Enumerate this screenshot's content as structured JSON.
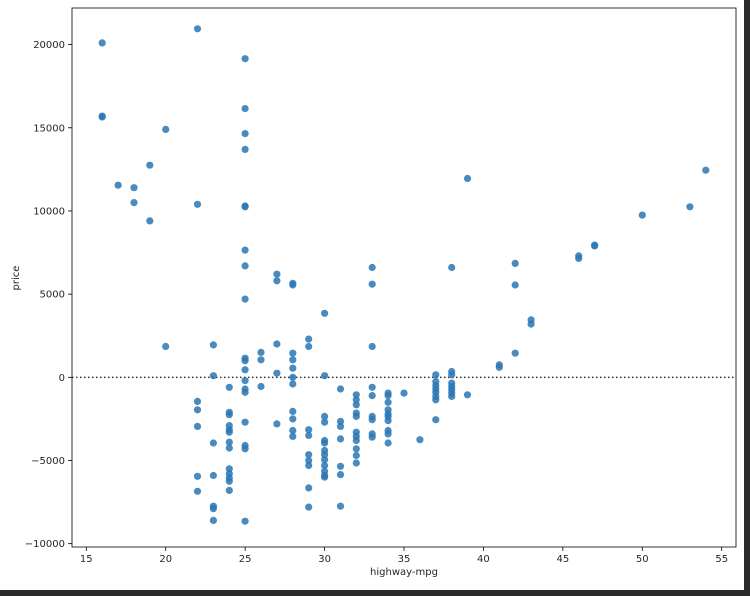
{
  "chart_data": {
    "type": "scatter",
    "title": "",
    "xlabel": "highway-mpg",
    "ylabel": "price",
    "xlim": [
      14.1,
      55.9
    ],
    "ylim": [
      -10200,
      22200
    ],
    "xticks": [
      15,
      20,
      25,
      30,
      35,
      40,
      45,
      50,
      55
    ],
    "yticks": [
      -10000,
      -5000,
      0,
      5000,
      10000,
      15000,
      20000
    ],
    "xtick_labels": [
      "15",
      "20",
      "25",
      "30",
      "35",
      "40",
      "45",
      "50",
      "55"
    ],
    "ytick_labels": [
      "−10000",
      "−5000",
      "0",
      "5000",
      "10000",
      "15000",
      "20000"
    ],
    "reference_line": {
      "y": 0,
      "style": "dotted"
    },
    "grid": false,
    "colors": {
      "marker": "#2a77b4",
      "reference_line": "#333333"
    },
    "points": [
      [
        16,
        20100
      ],
      [
        16,
        15650
      ],
      [
        16,
        15700
      ],
      [
        17,
        11550
      ],
      [
        18,
        11400
      ],
      [
        18,
        10500
      ],
      [
        19,
        12750
      ],
      [
        19,
        9400
      ],
      [
        20,
        14900
      ],
      [
        20,
        1850
      ],
      [
        22,
        20950
      ],
      [
        22,
        10400
      ],
      [
        22,
        -1450
      ],
      [
        22,
        -1950
      ],
      [
        22,
        -2950
      ],
      [
        22,
        -5950
      ],
      [
        22,
        -6850
      ],
      [
        23,
        1950
      ],
      [
        23,
        100
      ],
      [
        23,
        -3950
      ],
      [
        23,
        -5900
      ],
      [
        23,
        -7750
      ],
      [
        23,
        -7900
      ],
      [
        23,
        -8600
      ],
      [
        24,
        -600
      ],
      [
        24,
        -2100
      ],
      [
        24,
        -2250
      ],
      [
        24,
        -2900
      ],
      [
        24,
        -3150
      ],
      [
        24,
        -3300
      ],
      [
        24,
        -3900
      ],
      [
        24,
        -4250
      ],
      [
        24,
        -5500
      ],
      [
        24,
        -5800
      ],
      [
        24,
        -6050
      ],
      [
        24,
        -6250
      ],
      [
        24,
        -6800
      ],
      [
        25,
        19150
      ],
      [
        25,
        16150
      ],
      [
        25,
        14650
      ],
      [
        25,
        13700
      ],
      [
        25,
        10300
      ],
      [
        25,
        10250
      ],
      [
        25,
        7650
      ],
      [
        25,
        6700
      ],
      [
        25,
        4700
      ],
      [
        25,
        1150
      ],
      [
        25,
        1000
      ],
      [
        25,
        450
      ],
      [
        25,
        -200
      ],
      [
        25,
        -700
      ],
      [
        25,
        -900
      ],
      [
        25,
        -2700
      ],
      [
        25,
        -4100
      ],
      [
        25,
        -4300
      ],
      [
        25,
        -8650
      ],
      [
        26,
        1500
      ],
      [
        26,
        1050
      ],
      [
        26,
        -550
      ],
      [
        27,
        6200
      ],
      [
        27,
        5800
      ],
      [
        27,
        2000
      ],
      [
        27,
        250
      ],
      [
        27,
        -2800
      ],
      [
        28,
        5650
      ],
      [
        28,
        5550
      ],
      [
        28,
        1450
      ],
      [
        28,
        1050
      ],
      [
        28,
        550
      ],
      [
        28,
        0
      ],
      [
        28,
        -400
      ],
      [
        28,
        -2050
      ],
      [
        28,
        -2500
      ],
      [
        28,
        -3200
      ],
      [
        28,
        -3550
      ],
      [
        29,
        2300
      ],
      [
        29,
        1850
      ],
      [
        29,
        -3150
      ],
      [
        29,
        -3500
      ],
      [
        29,
        -4650
      ],
      [
        29,
        -5000
      ],
      [
        29,
        -5300
      ],
      [
        29,
        -6650
      ],
      [
        29,
        -7800
      ],
      [
        30,
        3850
      ],
      [
        30,
        100
      ],
      [
        30,
        -2350
      ],
      [
        30,
        -2700
      ],
      [
        30,
        -3800
      ],
      [
        30,
        -3950
      ],
      [
        30,
        -4400
      ],
      [
        30,
        -4650
      ],
      [
        30,
        -4950
      ],
      [
        30,
        -5300
      ],
      [
        30,
        -5650
      ],
      [
        30,
        -5900
      ],
      [
        30,
        -6000
      ],
      [
        31,
        -700
      ],
      [
        31,
        -2650
      ],
      [
        31,
        -2950
      ],
      [
        31,
        -3700
      ],
      [
        31,
        -5350
      ],
      [
        31,
        -5850
      ],
      [
        31,
        -7750
      ],
      [
        32,
        -1050
      ],
      [
        32,
        -1350
      ],
      [
        32,
        -1650
      ],
      [
        32,
        -2150
      ],
      [
        32,
        -2350
      ],
      [
        32,
        -3300
      ],
      [
        32,
        -3550
      ],
      [
        32,
        -3800
      ],
      [
        32,
        -4300
      ],
      [
        32,
        -4700
      ],
      [
        32,
        -5150
      ],
      [
        33,
        6600
      ],
      [
        33,
        5600
      ],
      [
        33,
        1850
      ],
      [
        33,
        -600
      ],
      [
        33,
        -1100
      ],
      [
        33,
        -2350
      ],
      [
        33,
        -2550
      ],
      [
        33,
        -3400
      ],
      [
        33,
        -3600
      ],
      [
        34,
        -950
      ],
      [
        34,
        -1100
      ],
      [
        34,
        -1500
      ],
      [
        34,
        -1950
      ],
      [
        34,
        -2200
      ],
      [
        34,
        -2350
      ],
      [
        34,
        -2600
      ],
      [
        34,
        -3200
      ],
      [
        34,
        -3400
      ],
      [
        34,
        -3950
      ],
      [
        35,
        -950
      ],
      [
        36,
        -3750
      ],
      [
        37,
        150
      ],
      [
        37,
        -250
      ],
      [
        37,
        -500
      ],
      [
        37,
        -700
      ],
      [
        37,
        -900
      ],
      [
        37,
        -1150
      ],
      [
        37,
        -1350
      ],
      [
        37,
        -2550
      ],
      [
        38,
        6600
      ],
      [
        38,
        350
      ],
      [
        38,
        150
      ],
      [
        38,
        -350
      ],
      [
        38,
        -550
      ],
      [
        38,
        -750
      ],
      [
        38,
        -950
      ],
      [
        38,
        -1150
      ],
      [
        39,
        11950
      ],
      [
        39,
        -1050
      ],
      [
        41,
        750
      ],
      [
        41,
        600
      ],
      [
        42,
        6850
      ],
      [
        42,
        5550
      ],
      [
        42,
        1450
      ],
      [
        43,
        3450
      ],
      [
        43,
        3200
      ],
      [
        46,
        7300
      ],
      [
        46,
        7150
      ],
      [
        47,
        7950
      ],
      [
        47,
        7900
      ],
      [
        50,
        9750
      ],
      [
        53,
        10250
      ],
      [
        54,
        12450
      ]
    ]
  }
}
